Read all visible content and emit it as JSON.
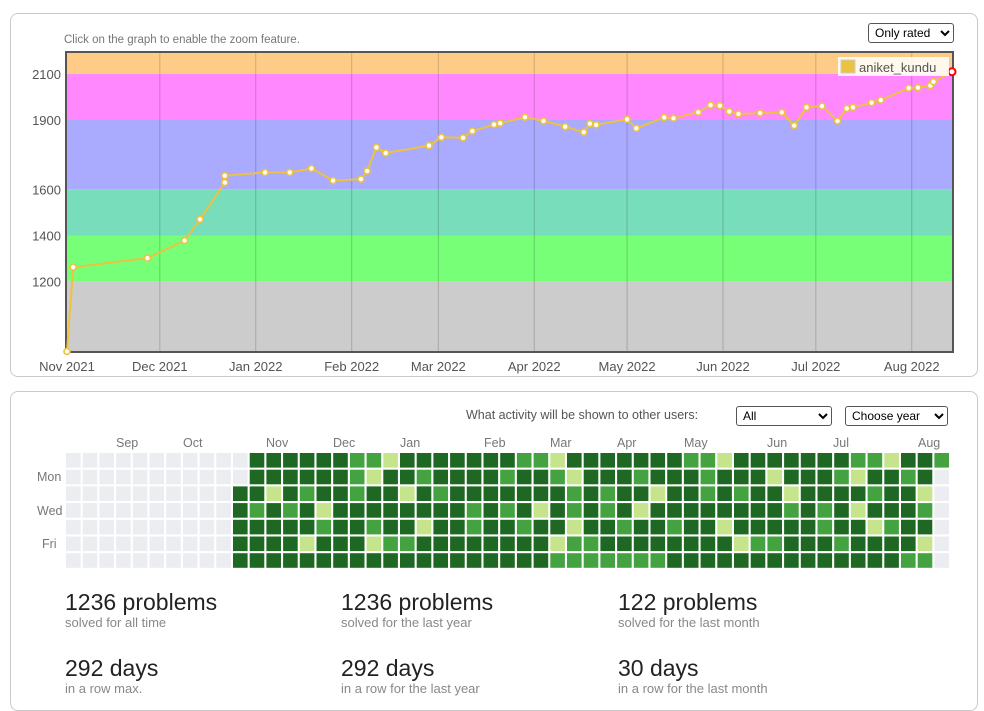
{
  "rating_section": {
    "zoom_hint": "Click on the graph to enable the zoom feature.",
    "filter_options": [
      "Only rated"
    ],
    "filter_selected": "Only rated",
    "chart_data": {
      "type": "line",
      "title": "",
      "xlabel": "",
      "ylabel": "",
      "ylim": [
        900,
        2190
      ],
      "y_tick_labels": [
        "1200",
        "1400",
        "1600",
        "1900",
        "2100"
      ],
      "x_tick_labels": [
        "Nov 2021",
        "Dec 2021",
        "Jan 2022",
        "Feb 2022",
        "Mar 2022",
        "Apr 2022",
        "May 2022",
        "Jun 2022",
        "Jul 2022",
        "Aug 2022"
      ],
      "x_tick_dates": [
        "2021-11-01",
        "2021-12-01",
        "2022-01-01",
        "2022-02-01",
        "2022-03-01",
        "2022-04-01",
        "2022-05-01",
        "2022-06-01",
        "2022-07-01",
        "2022-08-01"
      ],
      "x_range": [
        "2021-11-01",
        "2022-08-14"
      ],
      "grid": true,
      "legend_position": "top-right",
      "rating_bands": [
        {
          "from": 900,
          "to": 1200,
          "color": "#cccccc"
        },
        {
          "from": 1200,
          "to": 1400,
          "color": "#77ff77"
        },
        {
          "from": 1400,
          "to": 1600,
          "color": "#77ddbb"
        },
        {
          "from": 1600,
          "to": 1900,
          "color": "#aaaaff"
        },
        {
          "from": 1900,
          "to": 2100,
          "color": "#ff88ff"
        },
        {
          "from": 2100,
          "to": 2190,
          "color": "#ffcc88"
        }
      ],
      "series": [
        {
          "name": "aniket_kundu",
          "color": "#edc240",
          "last_point_color": "#ff0000",
          "points": [
            [
              "2021-11-01",
              898
            ],
            [
              "2021-11-03",
              1263
            ],
            [
              "2021-11-27",
              1302
            ],
            [
              "2021-12-09",
              1378
            ],
            [
              "2021-12-14",
              1470
            ],
            [
              "2021-12-22",
              1629
            ],
            [
              "2021-12-22",
              1659
            ],
            [
              "2022-01-04",
              1673
            ],
            [
              "2022-01-12",
              1673
            ],
            [
              "2022-01-19",
              1690
            ],
            [
              "2022-01-26",
              1638
            ],
            [
              "2022-02-04",
              1644
            ],
            [
              "2022-02-06",
              1679
            ],
            [
              "2022-02-09",
              1781
            ],
            [
              "2022-02-12",
              1757
            ],
            [
              "2022-02-26",
              1789
            ],
            [
              "2022-03-02",
              1825
            ],
            [
              "2022-03-09",
              1823
            ],
            [
              "2022-03-12",
              1852
            ],
            [
              "2022-03-19",
              1880
            ],
            [
              "2022-03-21",
              1886
            ],
            [
              "2022-03-29",
              1912
            ],
            [
              "2022-04-04",
              1896
            ],
            [
              "2022-04-11",
              1871
            ],
            [
              "2022-04-17",
              1847
            ],
            [
              "2022-04-19",
              1884
            ],
            [
              "2022-04-21",
              1879
            ],
            [
              "2022-05-01",
              1903
            ],
            [
              "2022-05-04",
              1864
            ],
            [
              "2022-05-13",
              1911
            ],
            [
              "2022-05-16",
              1908
            ],
            [
              "2022-05-24",
              1934
            ],
            [
              "2022-05-28",
              1964
            ],
            [
              "2022-05-31",
              1962
            ],
            [
              "2022-06-03",
              1937
            ],
            [
              "2022-06-06",
              1926
            ],
            [
              "2022-06-13",
              1930
            ],
            [
              "2022-06-20",
              1933
            ],
            [
              "2022-06-24",
              1876
            ],
            [
              "2022-06-28",
              1955
            ],
            [
              "2022-07-03",
              1960
            ],
            [
              "2022-07-08",
              1896
            ],
            [
              "2022-07-11",
              1950
            ],
            [
              "2022-07-13",
              1955
            ],
            [
              "2022-07-19",
              1975
            ],
            [
              "2022-07-22",
              1986
            ],
            [
              "2022-07-31",
              2038
            ],
            [
              "2022-08-03",
              2040
            ],
            [
              "2022-08-07",
              2049
            ],
            [
              "2022-08-08",
              2066
            ],
            [
              "2022-08-14",
              2109
            ]
          ]
        }
      ]
    }
  },
  "activity_section": {
    "visibility_label": "What activity will be shown to other users:",
    "visibility_selected": "All",
    "year_selected": "Choose year",
    "day_labels": [
      "Mon",
      "Wed",
      "Fri"
    ],
    "heatmap_data": {
      "type": "heatmap",
      "month_labels": [
        "Sep",
        "Oct",
        "Nov",
        "Dec",
        "Jan",
        "Feb",
        "Mar",
        "Apr",
        "May",
        "Jun",
        "Jul",
        "Aug"
      ],
      "weeks_total": 53,
      "first_active_week": 10,
      "levels": {
        "none": "#ebedf0",
        "low": "#c6e48b",
        "mid": "#44a340",
        "high": "#1e6823"
      }
    }
  },
  "stats": [
    {
      "value": "1236 problems",
      "caption": "solved for all time"
    },
    {
      "value": "1236 problems",
      "caption": "solved for the last year"
    },
    {
      "value": "122 problems",
      "caption": "solved for the last month"
    },
    {
      "value": "292 days",
      "caption": "in a row max."
    },
    {
      "value": "292 days",
      "caption": "in a row for the last year"
    },
    {
      "value": "30 days",
      "caption": "in a row for the last month"
    }
  ]
}
